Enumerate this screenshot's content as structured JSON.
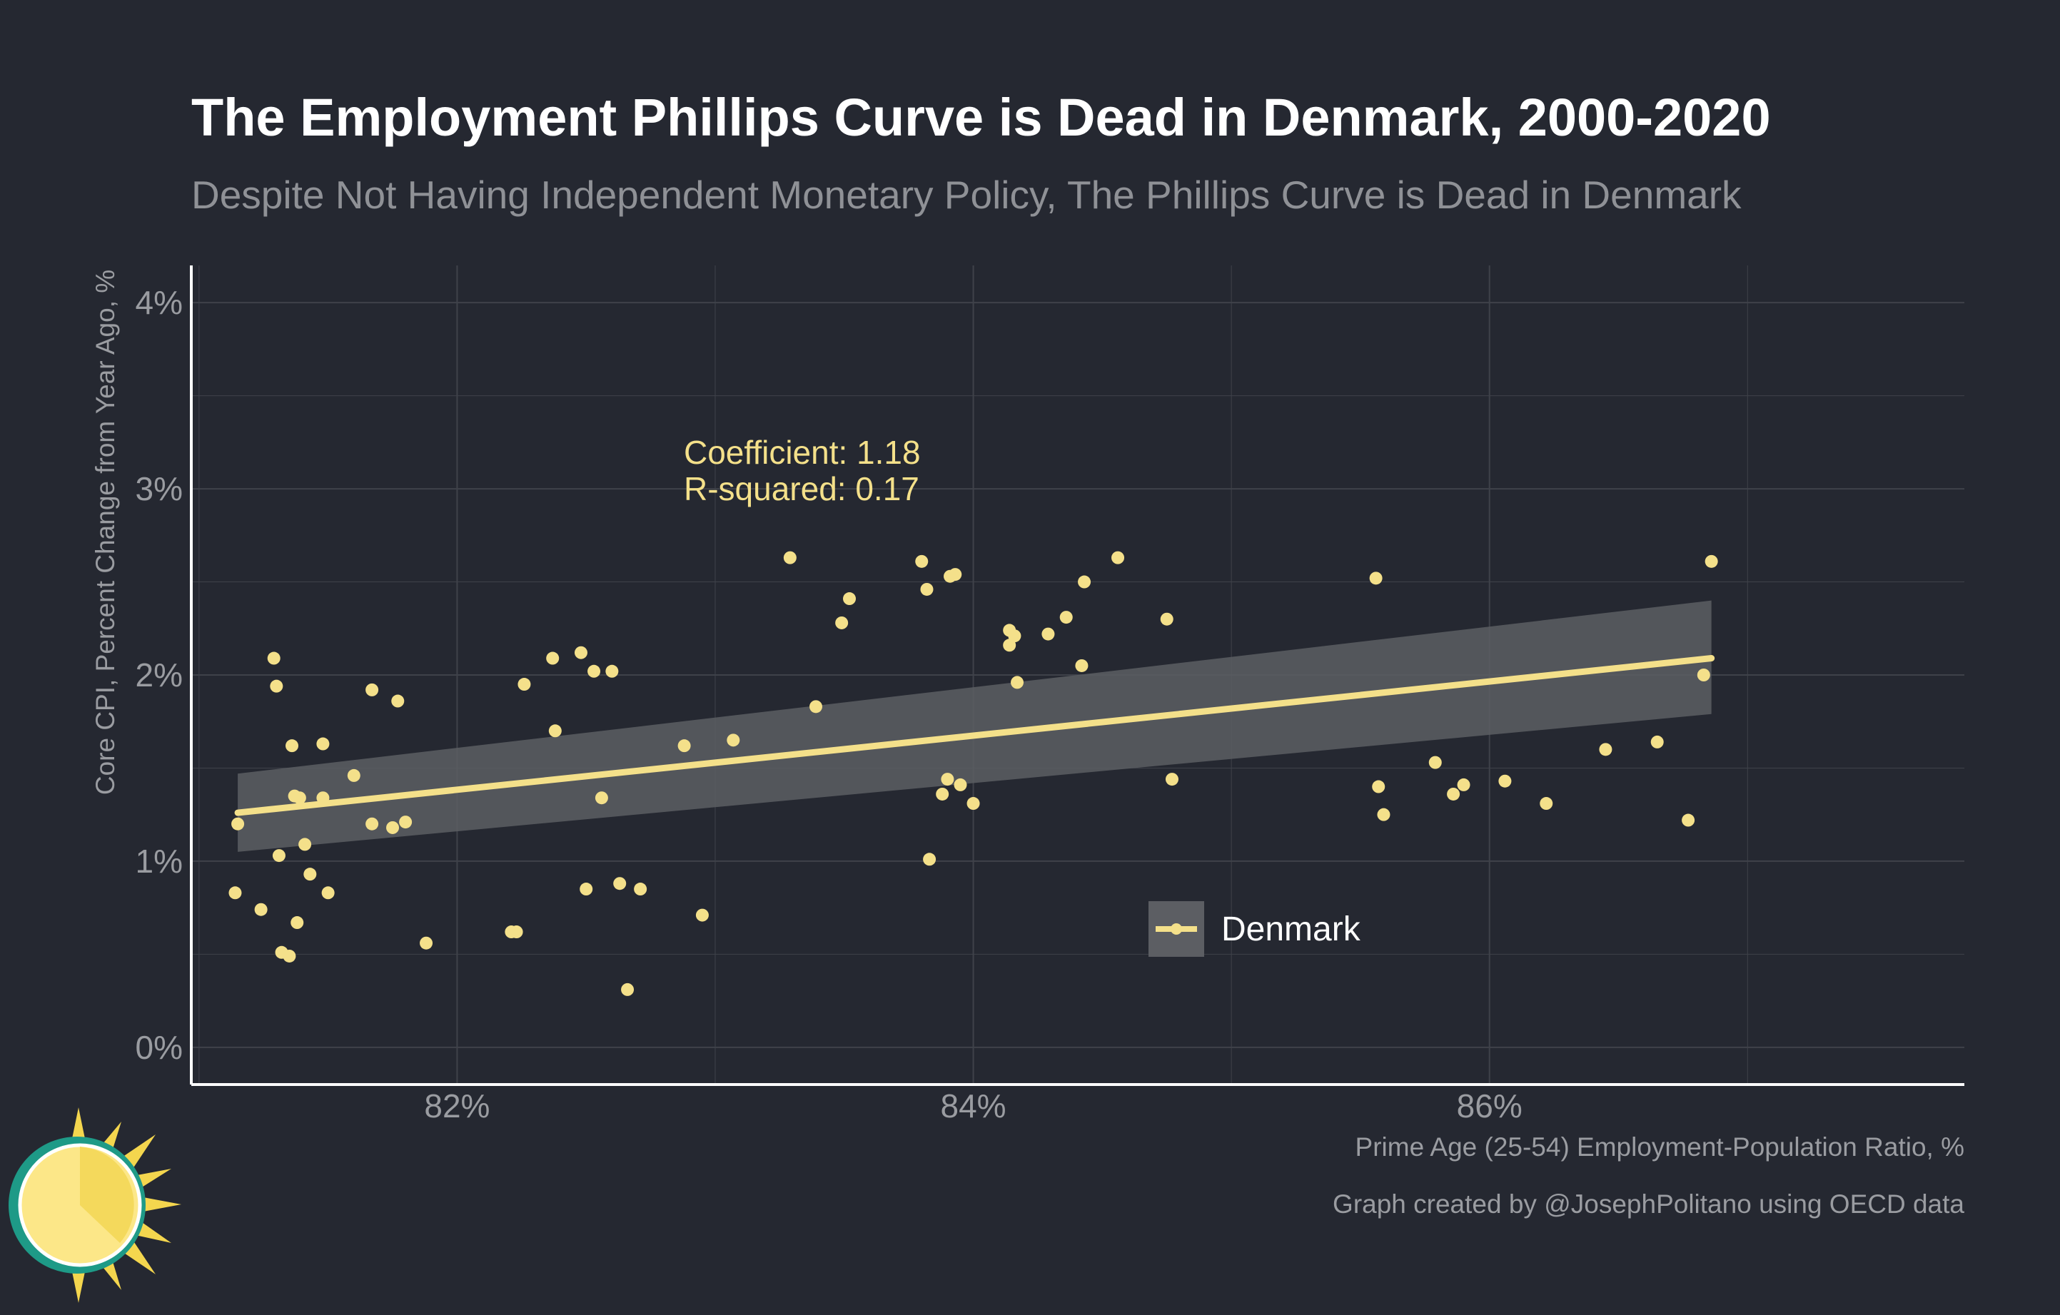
{
  "colors": {
    "background": "#252831",
    "grid": "#3f424a",
    "point": "#f4e08a",
    "line": "#f4e08a",
    "ribbon": "#5c5e63",
    "text_primary": "#ffffff",
    "text_secondary": "#9a9ca1",
    "annotation": "#f4e08a"
  },
  "logo": {
    "icon": "sun-logo-icon"
  },
  "chart_data": {
    "type": "scatter",
    "title": "The Employment Phillips Curve is Dead in Denmark, 2000-2020",
    "subtitle": "Despite Not Having Independent Monetary Policy, The Phillips Curve is Dead in Denmark",
    "xlabel": "Prime Age (25-54) Employment-Population Ratio, %",
    "ylabel": "Core CPI, Percent Change from Year Ago, %",
    "xlim": [
      80.97,
      87.84
    ],
    "ylim": [
      -0.2,
      4.2
    ],
    "x_ticks": [
      82,
      84,
      86
    ],
    "x_tick_labels": [
      "82%",
      "84%",
      "86%"
    ],
    "y_ticks": [
      0,
      1,
      2,
      3,
      4
    ],
    "y_tick_labels": [
      "0%",
      "1%",
      "2%",
      "3%",
      "4%"
    ],
    "x_minor_gridlines": [
      81,
      83,
      85,
      87
    ],
    "y_minor_gridlines": [
      0.5,
      1.5,
      2.5,
      3.5
    ],
    "grid": true,
    "annotations": [
      "Coefficient: 1.18",
      "R-squared: 0.17"
    ],
    "legend": {
      "position": "bottom-center",
      "entries": [
        "Denmark"
      ]
    },
    "credit": "Graph created by @JosephPolitano using OECD data",
    "series": [
      {
        "name": "Denmark",
        "points": [
          [
            81.15,
            1.2
          ],
          [
            81.14,
            0.83
          ],
          [
            81.24,
            0.74
          ],
          [
            81.29,
            2.09
          ],
          [
            81.3,
            1.94
          ],
          [
            81.31,
            1.03
          ],
          [
            81.32,
            0.51
          ],
          [
            81.35,
            0.49
          ],
          [
            81.36,
            1.62
          ],
          [
            81.37,
            1.35
          ],
          [
            81.38,
            0.67
          ],
          [
            81.39,
            1.34
          ],
          [
            81.41,
            1.09
          ],
          [
            81.43,
            0.93
          ],
          [
            81.48,
            1.63
          ],
          [
            81.48,
            1.34
          ],
          [
            81.5,
            0.83
          ],
          [
            81.6,
            1.46
          ],
          [
            81.67,
            1.2
          ],
          [
            81.67,
            1.92
          ],
          [
            81.75,
            1.18
          ],
          [
            81.77,
            1.86
          ],
          [
            81.8,
            1.21
          ],
          [
            81.88,
            0.56
          ],
          [
            82.21,
            0.62
          ],
          [
            82.23,
            0.62
          ],
          [
            82.26,
            1.95
          ],
          [
            82.37,
            2.09
          ],
          [
            82.38,
            1.7
          ],
          [
            82.48,
            2.12
          ],
          [
            82.5,
            0.85
          ],
          [
            82.53,
            2.02
          ],
          [
            82.56,
            1.34
          ],
          [
            82.6,
            2.02
          ],
          [
            82.63,
            0.88
          ],
          [
            82.66,
            0.31
          ],
          [
            82.71,
            0.85
          ],
          [
            82.88,
            1.62
          ],
          [
            82.95,
            0.71
          ],
          [
            83.07,
            1.65
          ],
          [
            83.29,
            2.63
          ],
          [
            83.39,
            1.83
          ],
          [
            83.49,
            2.28
          ],
          [
            83.52,
            2.41
          ],
          [
            83.8,
            2.61
          ],
          [
            83.82,
            2.46
          ],
          [
            83.83,
            1.01
          ],
          [
            83.88,
            1.36
          ],
          [
            83.9,
            1.44
          ],
          [
            83.91,
            2.53
          ],
          [
            83.93,
            2.54
          ],
          [
            83.95,
            1.41
          ],
          [
            84.0,
            1.31
          ],
          [
            84.14,
            2.24
          ],
          [
            84.14,
            2.16
          ],
          [
            84.16,
            2.21
          ],
          [
            84.17,
            1.96
          ],
          [
            84.29,
            2.22
          ],
          [
            84.36,
            2.31
          ],
          [
            84.42,
            2.05
          ],
          [
            84.43,
            2.5
          ],
          [
            84.56,
            2.63
          ],
          [
            84.75,
            2.3
          ],
          [
            84.77,
            1.44
          ],
          [
            85.56,
            2.52
          ],
          [
            85.57,
            1.4
          ],
          [
            85.59,
            1.25
          ],
          [
            85.79,
            1.53
          ],
          [
            85.86,
            1.36
          ],
          [
            85.9,
            1.41
          ],
          [
            86.06,
            1.43
          ],
          [
            86.22,
            1.31
          ],
          [
            86.45,
            1.6
          ],
          [
            86.65,
            1.64
          ],
          [
            86.77,
            1.22
          ],
          [
            86.83,
            2.0
          ],
          [
            86.86,
            2.61
          ]
        ]
      }
    ],
    "trendline": {
      "x": [
        81.15,
        86.86
      ],
      "y": [
        1.26,
        2.09
      ]
    },
    "confidence_band": {
      "x": [
        81.15,
        86.86
      ],
      "upper": [
        1.47,
        2.4
      ],
      "lower": [
        1.05,
        1.79
      ]
    }
  }
}
